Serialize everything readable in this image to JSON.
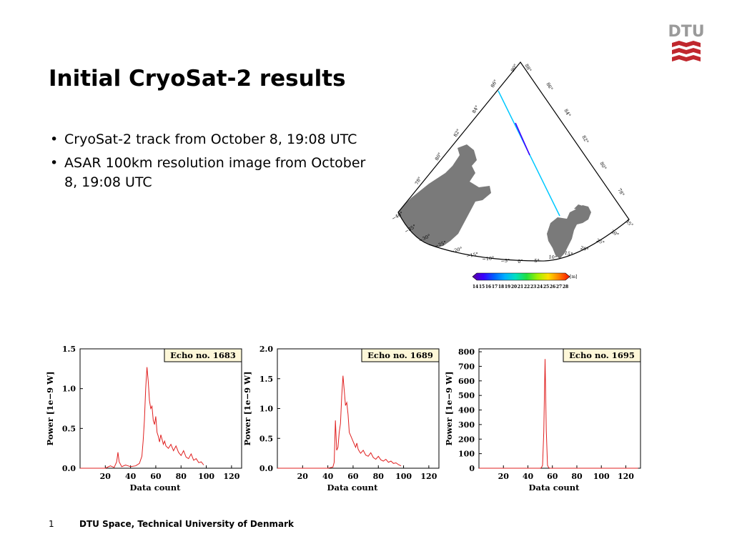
{
  "logo": {
    "text": "DTU",
    "color": "#9a9a9a",
    "accent": "#c0272d"
  },
  "slide": {
    "title": "Initial CryoSat-2 results",
    "bullets": [
      "CryoSat-2 track from October 8, 19:08 UTC",
      "ASAR 100km resolution image from October 8, 19:08 UTC"
    ]
  },
  "map": {
    "lat_labels": [
      "86°",
      "84°",
      "82°",
      "80°",
      "78°"
    ],
    "lat_labels_left": [
      "86°",
      "84°",
      "82°",
      "80°",
      "78°"
    ],
    "lon_labels": [
      "−40°",
      "−35°",
      "−30°",
      "−25°",
      "−20°",
      "−15°",
      "−10°",
      "−5°",
      "0°",
      "5°",
      "10°",
      "15°",
      "20°",
      "25°",
      "30°",
      "35°"
    ],
    "top_labels": [
      "90°",
      "88°"
    ],
    "colorbar": {
      "unit": "[m]",
      "ticks": [
        "14",
        "15",
        "16",
        "17",
        "18",
        "19",
        "20",
        "21",
        "22",
        "23",
        "24",
        "25",
        "26",
        "27",
        "28"
      ],
      "colors": [
        "#5a00a0",
        "#3a00ff",
        "#0060ff",
        "#00b0ff",
        "#00e0c0",
        "#20e040",
        "#a0f000",
        "#ffe000",
        "#ff8000",
        "#ff1000"
      ]
    },
    "track_color_main": "#00c8ff",
    "track_color_alt": "#4000ff",
    "land_color": "#7a7a7a"
  },
  "chart_data": [
    {
      "type": "line",
      "title": "Echo no. 1683",
      "xlabel": "Data count",
      "ylabel": "Power [1e−9 W]",
      "xlim": [
        0,
        128
      ],
      "ylim": [
        0,
        1.5
      ],
      "xticks": [
        20,
        40,
        60,
        80,
        100,
        120
      ],
      "yticks": [
        0.0,
        0.5,
        1.0,
        1.5
      ],
      "ytick_labels": [
        "0.0",
        "0.5",
        "1.0",
        "1.5"
      ],
      "color": "#e02020",
      "x": [
        0,
        20,
        24,
        27,
        29,
        30,
        31,
        33,
        36,
        40,
        44,
        47,
        49,
        50,
        51,
        52,
        53,
        54,
        55,
        56,
        57,
        58,
        59,
        60,
        61,
        62,
        63,
        64,
        65,
        66,
        67,
        68,
        70,
        72,
        74,
        76,
        78,
        80,
        82,
        84,
        86,
        88,
        90,
        92,
        94,
        96,
        98
      ],
      "y": [
        0,
        0,
        0.03,
        0.01,
        0.08,
        0.2,
        0.08,
        0.02,
        0.04,
        0.02,
        0.03,
        0.06,
        0.15,
        0.35,
        0.6,
        1.0,
        1.27,
        1.1,
        0.85,
        0.75,
        0.78,
        0.6,
        0.55,
        0.65,
        0.45,
        0.4,
        0.33,
        0.42,
        0.36,
        0.3,
        0.34,
        0.28,
        0.25,
        0.3,
        0.22,
        0.28,
        0.2,
        0.16,
        0.22,
        0.14,
        0.12,
        0.18,
        0.1,
        0.12,
        0.07,
        0.08,
        0.04
      ]
    },
    {
      "type": "line",
      "title": "Echo no. 1689",
      "xlabel": "Data count",
      "ylabel": "Power [1e−9 W]",
      "xlim": [
        0,
        128
      ],
      "ylim": [
        0,
        2.0
      ],
      "xticks": [
        20,
        40,
        60,
        80,
        100,
        120
      ],
      "yticks": [
        0.0,
        0.5,
        1.0,
        1.5,
        2.0
      ],
      "ytick_labels": [
        "0.0",
        "0.5",
        "1.0",
        "1.5",
        "2.0"
      ],
      "color": "#e02020",
      "x": [
        0,
        40,
        44,
        45,
        46,
        47,
        48,
        49,
        50,
        51,
        52,
        53,
        54,
        55,
        56,
        57,
        58,
        59,
        60,
        61,
        62,
        63,
        64,
        65,
        66,
        68,
        70,
        72,
        74,
        76,
        78,
        80,
        82,
        84,
        86,
        88,
        90,
        92,
        94,
        96,
        98
      ],
      "y": [
        0,
        0,
        0.02,
        0.1,
        0.8,
        0.3,
        0.35,
        0.6,
        0.75,
        1.2,
        1.55,
        1.3,
        1.05,
        1.1,
        0.9,
        0.6,
        0.55,
        0.5,
        0.45,
        0.4,
        0.35,
        0.42,
        0.32,
        0.28,
        0.25,
        0.3,
        0.22,
        0.2,
        0.26,
        0.18,
        0.15,
        0.2,
        0.14,
        0.12,
        0.15,
        0.1,
        0.12,
        0.08,
        0.09,
        0.06,
        0.04
      ]
    },
    {
      "type": "line",
      "title": "Echo no. 1695",
      "xlabel": "Data count",
      "ylabel": "Power [1e−9 W]",
      "xlim": [
        0,
        132
      ],
      "ylim": [
        0,
        820
      ],
      "xticks": [
        20,
        40,
        60,
        80,
        100,
        120
      ],
      "yticks": [
        0,
        100,
        200,
        300,
        400,
        500,
        600,
        700,
        800
      ],
      "ytick_labels": [
        "0",
        "100",
        "200",
        "300",
        "400",
        "500",
        "600",
        "700",
        "800"
      ],
      "color": "#e02020",
      "x": [
        0,
        50,
        51,
        52,
        53,
        54,
        55,
        56,
        57,
        58,
        130
      ],
      "y": [
        0,
        0,
        3,
        20,
        250,
        750,
        260,
        20,
        3,
        0,
        0
      ]
    }
  ],
  "footer": {
    "page_number": "1",
    "text": "DTU Space, Technical University of Denmark"
  }
}
